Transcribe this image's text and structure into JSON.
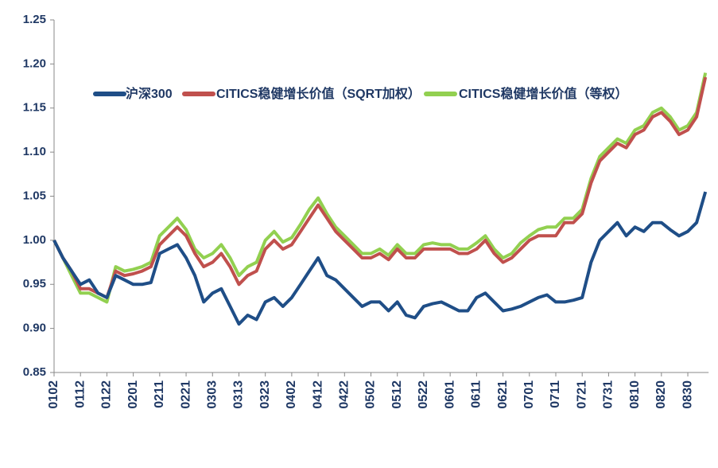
{
  "chart_data": {
    "type": "line",
    "categories": [
      "0102",
      null,
      null,
      "0112",
      null,
      null,
      "0122",
      null,
      null,
      "0201",
      null,
      null,
      "0211",
      null,
      null,
      "0221",
      null,
      null,
      "0303",
      null,
      null,
      "0313",
      null,
      null,
      "0323",
      null,
      null,
      "0402",
      null,
      null,
      "0412",
      null,
      null,
      "0422",
      null,
      null,
      "0502",
      null,
      null,
      "0512",
      null,
      null,
      "0522",
      null,
      null,
      "0601",
      null,
      null,
      "0611",
      null,
      null,
      "0621",
      null,
      null,
      "0701",
      null,
      null,
      "0711",
      null,
      null,
      "0721",
      null,
      null,
      "0731",
      null,
      null,
      "0810",
      null,
      null,
      "0820",
      null,
      null,
      "0830",
      null,
      null
    ],
    "series": [
      {
        "name": "沪深300",
        "color": "#1f4e87",
        "values": [
          1.0,
          0.98,
          0.965,
          0.95,
          0.955,
          0.94,
          0.935,
          0.96,
          0.955,
          0.95,
          0.95,
          0.952,
          0.985,
          0.99,
          0.995,
          0.98,
          0.96,
          0.93,
          0.94,
          0.945,
          0.925,
          0.905,
          0.915,
          0.91,
          0.93,
          0.935,
          0.925,
          0.935,
          0.95,
          0.965,
          0.98,
          0.96,
          0.955,
          0.945,
          0.935,
          0.925,
          0.93,
          0.93,
          0.92,
          0.93,
          0.915,
          0.912,
          0.925,
          0.928,
          0.93,
          0.925,
          0.92,
          0.92,
          0.935,
          0.94,
          0.93,
          0.92,
          0.922,
          0.925,
          0.93,
          0.935,
          0.938,
          0.93,
          0.93,
          0.932,
          0.935,
          0.975,
          1.0,
          1.01,
          1.02,
          1.005,
          1.015,
          1.01,
          1.02,
          1.02,
          1.012,
          1.005,
          1.01,
          1.02,
          1.055
        ]
      },
      {
        "name": "CITICS稳健增长价值（SQRT加权）",
        "color": "#c0504d",
        "values": [
          1.0,
          0.98,
          0.965,
          0.945,
          0.945,
          0.94,
          0.935,
          0.965,
          0.96,
          0.962,
          0.965,
          0.97,
          0.995,
          1.005,
          1.015,
          1.005,
          0.985,
          0.97,
          0.975,
          0.985,
          0.97,
          0.95,
          0.96,
          0.965,
          0.99,
          1.0,
          0.99,
          0.995,
          1.01,
          1.025,
          1.04,
          1.025,
          1.01,
          1.0,
          0.99,
          0.98,
          0.98,
          0.985,
          0.978,
          0.99,
          0.98,
          0.98,
          0.99,
          0.99,
          0.99,
          0.99,
          0.985,
          0.985,
          0.99,
          1.0,
          0.985,
          0.975,
          0.98,
          0.99,
          1.0,
          1.005,
          1.005,
          1.005,
          1.02,
          1.02,
          1.03,
          1.065,
          1.09,
          1.1,
          1.11,
          1.105,
          1.12,
          1.125,
          1.14,
          1.145,
          1.135,
          1.12,
          1.125,
          1.14,
          1.185
        ]
      },
      {
        "name": "CITICS稳健增长价值（等权）",
        "color": "#92d050",
        "values": [
          1.0,
          0.98,
          0.96,
          0.94,
          0.94,
          0.935,
          0.93,
          0.97,
          0.965,
          0.967,
          0.97,
          0.975,
          1.005,
          1.015,
          1.025,
          1.012,
          0.99,
          0.98,
          0.985,
          0.995,
          0.98,
          0.96,
          0.97,
          0.975,
          1.0,
          1.01,
          0.998,
          1.003,
          1.018,
          1.035,
          1.048,
          1.03,
          1.015,
          1.005,
          0.995,
          0.985,
          0.985,
          0.99,
          0.983,
          0.995,
          0.985,
          0.985,
          0.995,
          0.997,
          0.995,
          0.995,
          0.99,
          0.99,
          0.997,
          1.005,
          0.99,
          0.98,
          0.985,
          0.997,
          1.005,
          1.012,
          1.015,
          1.015,
          1.025,
          1.025,
          1.035,
          1.07,
          1.095,
          1.105,
          1.115,
          1.11,
          1.125,
          1.13,
          1.145,
          1.15,
          1.14,
          1.125,
          1.13,
          1.145,
          1.19
        ]
      }
    ],
    "ylim": [
      0.85,
      1.25
    ],
    "yticks": [
      0.85,
      {
        "value": 0.9,
        "label": "0.90"
      },
      0.95,
      {
        "value": 1.0,
        "label": "1.00"
      },
      1.05,
      {
        "value": 1.1,
        "label": "1.10"
      },
      1.15,
      {
        "value": 1.2,
        "label": "1.20"
      },
      1.25
    ],
    "grid": false
  }
}
